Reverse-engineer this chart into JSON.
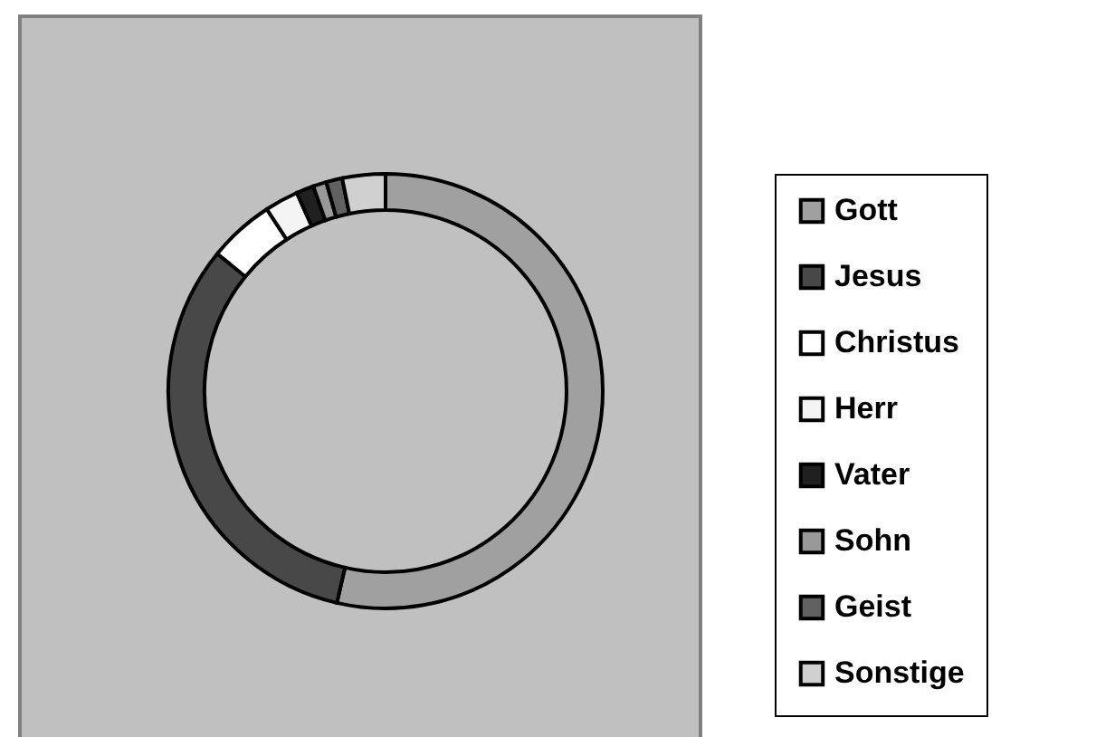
{
  "chart_data": {
    "type": "donut",
    "categories": [
      "Gott",
      "Jesus",
      "Christus",
      "Herr",
      "Vater",
      "Sohn",
      "Geist",
      "Sonstige"
    ],
    "values": [
      53.6,
      32.3,
      4.9,
      2.5,
      1.3,
      1.0,
      1.2,
      3.2
    ],
    "colors": [
      "#a0a0a0",
      "#484848",
      "#ffffff",
      "#f4f4f4",
      "#202020",
      "#999999",
      "#606060",
      "#d0d0d0"
    ],
    "legend": "right"
  }
}
